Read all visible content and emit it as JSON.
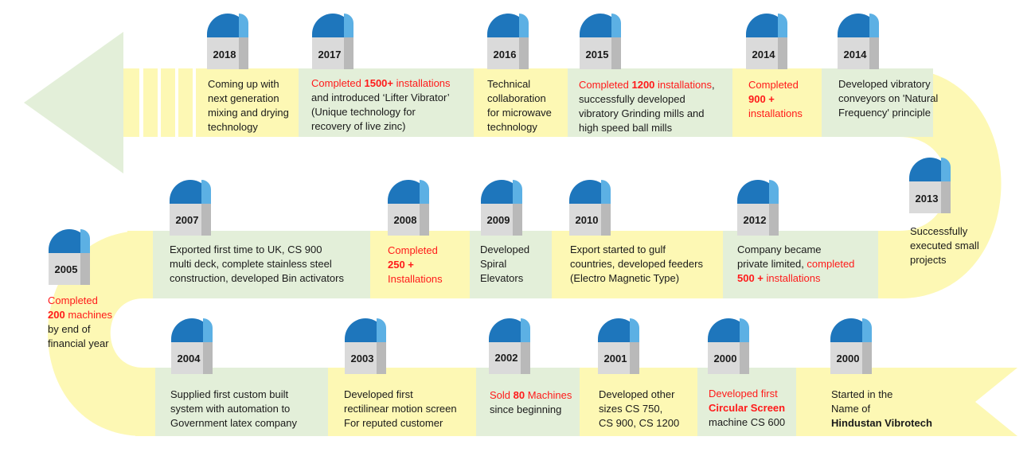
{
  "milestones": [
    {
      "id": "2018a",
      "year": "2018",
      "lines": [
        [
          {
            "t": "Coming up with"
          }
        ],
        [
          {
            "t": "next generation"
          }
        ],
        [
          {
            "t": "mixing and drying"
          }
        ],
        [
          {
            "t": "technology"
          }
        ]
      ]
    },
    {
      "id": "2017",
      "year": "2017",
      "lines": [
        [
          {
            "t": "Completed ",
            "c": "red"
          },
          {
            "t": "1500+",
            "c": "red",
            "b": true
          },
          {
            "t": " installations",
            "c": "red"
          }
        ],
        [
          {
            "t": "and introduced ‘Lifter Vibrator’"
          }
        ],
        [
          {
            "t": "(Unique technology for"
          }
        ],
        [
          {
            "t": "recovery of live zinc)"
          }
        ]
      ]
    },
    {
      "id": "2016",
      "year": "2016",
      "lines": [
        [
          {
            "t": "Technical"
          }
        ],
        [
          {
            "t": "collaboration"
          }
        ],
        [
          {
            "t": "for microwave"
          }
        ],
        [
          {
            "t": "technology"
          }
        ]
      ]
    },
    {
      "id": "2015",
      "year": "2015",
      "lines": [
        [
          {
            "t": "Completed ",
            "c": "red"
          },
          {
            "t": "1200",
            "c": "red",
            "b": true
          },
          {
            "t": " installations",
            "c": "red"
          },
          {
            "t": ","
          }
        ],
        [
          {
            "t": "successfully developed"
          }
        ],
        [
          {
            "t": "vibratory  Grinding mills and"
          }
        ],
        [
          {
            "t": "high speed ball mills"
          }
        ]
      ]
    },
    {
      "id": "2014a",
      "year": "2014",
      "lines": [
        [
          {
            "t": "Completed",
            "c": "red"
          }
        ],
        [
          {
            "t": "900 +",
            "c": "red",
            "b": true
          }
        ],
        [
          {
            "t": "installations",
            "c": "red"
          }
        ]
      ]
    },
    {
      "id": "2014b",
      "year": "2014",
      "lines": [
        [
          {
            "t": "Developed vibratory"
          }
        ],
        [
          {
            "t": "conveyors on 'Natural"
          }
        ],
        [
          {
            "t": "Frequency' principle"
          }
        ]
      ]
    },
    {
      "id": "2013",
      "year": "2013",
      "lines": [
        [
          {
            "t": "Successfully"
          }
        ],
        [
          {
            "t": "executed small"
          }
        ],
        [
          {
            "t": "projects"
          }
        ]
      ]
    },
    {
      "id": "2012",
      "year": "2012",
      "lines": [
        [
          {
            "t": "Company  became"
          }
        ],
        [
          {
            "t": "private limited, "
          },
          {
            "t": "completed",
            "c": "red"
          }
        ],
        [
          {
            "t": "500 +",
            "c": "red",
            "b": true
          },
          {
            "t": " installations",
            "c": "red"
          }
        ]
      ]
    },
    {
      "id": "2010",
      "year": "2010",
      "lines": [
        [
          {
            "t": "Export started to gulf"
          }
        ],
        [
          {
            "t": "countries, developed feeders"
          }
        ],
        [
          {
            "t": "(Electro Magnetic Type)"
          }
        ]
      ]
    },
    {
      "id": "2009",
      "year": "2009",
      "lines": [
        [
          {
            "t": "Developed"
          }
        ],
        [
          {
            "t": "Spiral"
          }
        ],
        [
          {
            "t": "Elevators"
          }
        ]
      ]
    },
    {
      "id": "2008",
      "year": "2008",
      "lines": [
        [
          {
            "t": "Completed",
            "c": "red"
          }
        ],
        [
          {
            "t": "250 +",
            "c": "red",
            "b": true
          }
        ],
        [
          {
            "t": "Installations",
            "c": "red"
          }
        ]
      ]
    },
    {
      "id": "2007",
      "year": "2007",
      "lines": [
        [
          {
            "t": "Exported first time to UK, CS 900"
          }
        ],
        [
          {
            "t": "multi deck, complete stainless steel"
          }
        ],
        [
          {
            "t": "construction, developed Bin activators"
          }
        ]
      ]
    },
    {
      "id": "2005",
      "year": "2005",
      "lines": [
        [
          {
            "t": "Completed",
            "c": "red"
          }
        ],
        [
          {
            "t": "200",
            "c": "red",
            "b": true
          },
          {
            "t": " machines",
            "c": "red"
          }
        ],
        [
          {
            "t": "by end of"
          }
        ],
        [
          {
            "t": "financial year"
          }
        ]
      ]
    },
    {
      "id": "2004",
      "year": "2004",
      "lines": [
        [
          {
            "t": "Supplied first custom built"
          }
        ],
        [
          {
            "t": "system with automation to"
          }
        ],
        [
          {
            "t": "Government  latex company"
          }
        ]
      ]
    },
    {
      "id": "2003",
      "year": "2003",
      "lines": [
        [
          {
            "t": "Developed first"
          }
        ],
        [
          {
            "t": "rectilinear motion screen"
          }
        ],
        [
          {
            "t": "For reputed  customer"
          }
        ]
      ]
    },
    {
      "id": "2002",
      "year": "2002",
      "lines": [
        [
          {
            "t": "Sold ",
            "c": "red"
          },
          {
            "t": "80",
            "c": "red",
            "b": true
          },
          {
            "t": " Machines",
            "c": "red"
          }
        ],
        [
          {
            "t": "since beginning"
          }
        ]
      ]
    },
    {
      "id": "2001",
      "year": "2001",
      "lines": [
        [
          {
            "t": "Developed other"
          }
        ],
        [
          {
            "t": "sizes CS 750,"
          }
        ],
        [
          {
            "t": "CS 900, CS 1200"
          }
        ]
      ]
    },
    {
      "id": "2000a",
      "year": "2000",
      "lines": [
        [
          {
            "t": "Developed first",
            "c": "red"
          }
        ],
        [
          {
            "t": "Circular Screen",
            "c": "red",
            "b": true
          }
        ],
        [
          {
            "t": "machine CS 600"
          }
        ]
      ]
    },
    {
      "id": "2000b",
      "year": "2000",
      "lines": [
        [
          {
            "t": "Started in the"
          }
        ],
        [
          {
            "t": "Name of"
          }
        ],
        [
          {
            "t": "Hindustan Vibrotech",
            "b": true
          }
        ]
      ]
    }
  ],
  "colors": {
    "road": "#fdf8b4",
    "panel_green": "#e3efd9",
    "arrow": "#e3efd9",
    "highlight": "#ff1a1a",
    "milestone_cap": "#1e76bc"
  }
}
